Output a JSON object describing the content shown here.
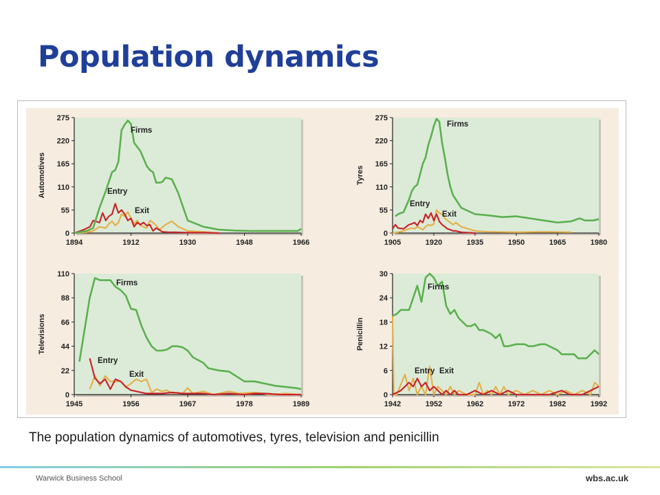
{
  "slide": {
    "title": "Population dynamics",
    "caption": "The population dynamics of automotives, tyres, television and penicillin",
    "footer_left": "Warwick Business School",
    "footer_right": "wbs.ac.uk"
  },
  "colors": {
    "title": "#1f3f99",
    "panel_background": "#f6ece0",
    "plot_background": "#dcebd8",
    "firms": "#5bb04e",
    "entry": "#c8252b",
    "exit": "#e5b04c"
  },
  "chart_data": [
    {
      "type": "line",
      "title": "",
      "ylabel": "Automotives",
      "xlabel": "",
      "xlim": [
        1894,
        1966
      ],
      "ylim": [
        0,
        275
      ],
      "xticks": [
        "1894",
        "1912",
        "1930",
        "1948",
        "1966"
      ],
      "yticks": [
        "0",
        "55",
        "110",
        "165",
        "220",
        "275"
      ],
      "grid": false,
      "series": [
        {
          "name": "Firms",
          "x": [
            1894,
            1898,
            1900,
            1902,
            1904,
            1906,
            1907,
            1908,
            1909,
            1910,
            1911,
            1912,
            1913,
            1915,
            1917,
            1918,
            1919,
            1920,
            1921,
            1922,
            1923,
            1925,
            1927,
            1930,
            1935,
            1940,
            1945,
            1950,
            1955,
            1960,
            1965,
            1966
          ],
          "y": [
            0,
            5,
            12,
            60,
            100,
            145,
            150,
            170,
            245,
            258,
            268,
            260,
            215,
            195,
            160,
            150,
            145,
            120,
            120,
            122,
            132,
            128,
            95,
            30,
            15,
            8,
            6,
            5,
            5,
            5,
            5,
            10
          ]
        },
        {
          "name": "Entry",
          "x": [
            1894,
            1897,
            1899,
            1900,
            1902,
            1903,
            1904,
            1905,
            1906,
            1907,
            1908,
            1909,
            1910,
            1911,
            1912,
            1913,
            1914,
            1915,
            1916,
            1917,
            1918,
            1919,
            1920,
            1922,
            1924,
            1926,
            1930,
            1935,
            1940
          ],
          "y": [
            0,
            8,
            15,
            30,
            25,
            48,
            30,
            40,
            45,
            70,
            48,
            55,
            45,
            30,
            35,
            15,
            25,
            20,
            25,
            18,
            20,
            5,
            12,
            3,
            2,
            2,
            1,
            1,
            0
          ]
        },
        {
          "name": "Exit",
          "x": [
            1894,
            1898,
            1900,
            1902,
            1904,
            1905,
            1906,
            1907,
            1908,
            1909,
            1910,
            1911,
            1912,
            1913,
            1914,
            1915,
            1917,
            1918,
            1919,
            1920,
            1921,
            1923,
            1925,
            1927,
            1930,
            1935,
            1940
          ],
          "y": [
            0,
            2,
            5,
            15,
            12,
            22,
            28,
            18,
            25,
            45,
            40,
            50,
            35,
            22,
            30,
            18,
            12,
            30,
            25,
            18,
            8,
            20,
            28,
            15,
            5,
            3,
            0
          ]
        }
      ],
      "annotations": [
        "Firms",
        "Entry",
        "Exit"
      ]
    },
    {
      "type": "line",
      "title": "",
      "ylabel": "Tyres",
      "xlabel": "",
      "xlim": [
        1905,
        1980
      ],
      "ylim": [
        0,
        275
      ],
      "xticks": [
        "1905",
        "1920",
        "1935",
        "1950",
        "1965",
        "1980"
      ],
      "yticks": [
        "0",
        "55",
        "110",
        "165",
        "220",
        "275"
      ],
      "grid": false,
      "series": [
        {
          "name": "Firms",
          "x": [
            1906,
            1907,
            1909,
            1910,
            1911,
            1912,
            1913,
            1914,
            1915,
            1916,
            1917,
            1918,
            1919,
            1920,
            1921,
            1922,
            1923,
            1924,
            1925,
            1926,
            1927,
            1928,
            1930,
            1935,
            1940,
            1945,
            1950,
            1955,
            1960,
            1965,
            1970,
            1973,
            1975,
            1978,
            1980
          ],
          "y": [
            40,
            45,
            50,
            65,
            80,
            100,
            110,
            115,
            140,
            165,
            180,
            210,
            230,
            255,
            272,
            265,
            215,
            180,
            140,
            110,
            90,
            80,
            60,
            45,
            42,
            38,
            40,
            35,
            30,
            25,
            28,
            35,
            30,
            30,
            33
          ]
        },
        {
          "name": "Entry",
          "x": [
            1905,
            1906,
            1907,
            1909,
            1910,
            1911,
            1912,
            1913,
            1914,
            1915,
            1916,
            1917,
            1918,
            1919,
            1920,
            1921,
            1922,
            1923,
            1924,
            1925,
            1926,
            1927,
            1928,
            1930,
            1935
          ],
          "y": [
            10,
            20,
            12,
            10,
            15,
            20,
            22,
            25,
            18,
            30,
            25,
            45,
            35,
            48,
            30,
            45,
            28,
            20,
            15,
            10,
            8,
            5,
            5,
            2,
            0
          ]
        },
        {
          "name": "Exit",
          "x": [
            1905,
            1907,
            1909,
            1910,
            1912,
            1913,
            1914,
            1915,
            1916,
            1917,
            1918,
            1919,
            1920,
            1921,
            1922,
            1923,
            1924,
            1925,
            1926,
            1927,
            1928,
            1930,
            1935,
            1940,
            1950,
            1960,
            1970
          ],
          "y": [
            0,
            2,
            5,
            8,
            12,
            10,
            15,
            12,
            8,
            15,
            20,
            18,
            22,
            55,
            48,
            45,
            35,
            30,
            25,
            20,
            25,
            15,
            5,
            3,
            2,
            3,
            2
          ]
        }
      ],
      "annotations": [
        "Firms",
        "Entry",
        "Exit"
      ]
    },
    {
      "type": "line",
      "title": "",
      "ylabel": "Televisions",
      "xlabel": "",
      "xlim": [
        1945,
        1989
      ],
      "ylim": [
        0,
        110
      ],
      "xticks": [
        "1945",
        "1956",
        "1967",
        "1978",
        "1989"
      ],
      "yticks": [
        "0",
        "22",
        "44",
        "66",
        "88",
        "110"
      ],
      "grid": false,
      "series": [
        {
          "name": "Firms",
          "x": [
            1946,
            1948,
            1949,
            1950,
            1952,
            1953,
            1954,
            1955,
            1956,
            1957,
            1958,
            1959,
            1960,
            1961,
            1962,
            1963,
            1964,
            1965,
            1966,
            1967,
            1968,
            1970,
            1971,
            1973,
            1975,
            1976,
            1978,
            1980,
            1982,
            1984,
            1986,
            1988,
            1989
          ],
          "y": [
            30,
            88,
            106,
            104,
            104,
            98,
            95,
            90,
            78,
            77,
            63,
            52,
            44,
            40,
            40,
            41,
            44,
            44,
            43,
            40,
            34,
            29,
            24,
            22,
            21,
            18,
            12,
            12,
            10,
            8,
            7,
            6,
            5
          ]
        },
        {
          "name": "Entry",
          "x": [
            1948,
            1949,
            1950,
            1951,
            1952,
            1953,
            1954,
            1955,
            1956,
            1957,
            1958,
            1959,
            1960,
            1962,
            1964,
            1966,
            1968,
            1970,
            1972,
            1975,
            1978,
            1980,
            1982,
            1985,
            1989
          ],
          "y": [
            33,
            15,
            10,
            14,
            5,
            14,
            12,
            7,
            4,
            3,
            2,
            1,
            1,
            1,
            2,
            1,
            1,
            1,
            0,
            1,
            0,
            1,
            1,
            0,
            0
          ]
        },
        {
          "name": "Exit",
          "x": [
            1948,
            1949,
            1950,
            1951,
            1952,
            1953,
            1954,
            1955,
            1956,
            1957,
            1958,
            1959,
            1960,
            1961,
            1962,
            1963,
            1964,
            1965,
            1966,
            1967,
            1968,
            1970,
            1972,
            1975,
            1977,
            1980,
            1983,
            1986,
            1989
          ],
          "y": [
            5,
            17,
            8,
            17,
            12,
            12,
            12,
            7,
            10,
            14,
            12,
            14,
            2,
            5,
            3,
            4,
            1,
            2,
            1,
            6,
            1,
            3,
            0,
            3,
            1,
            2,
            0,
            1,
            0
          ]
        }
      ],
      "annotations": [
        "Firms",
        "Entry",
        "Exit"
      ]
    },
    {
      "type": "line",
      "title": "",
      "ylabel": "Penicillin",
      "xlabel": "",
      "xlim": [
        1942,
        1992
      ],
      "ylim": [
        0,
        30
      ],
      "xticks": [
        "1942",
        "1952",
        "1962",
        "1972",
        "1982",
        "1992"
      ],
      "yticks": [
        "0",
        "6",
        "12",
        "18",
        "24",
        "30"
      ],
      "grid": false,
      "series": [
        {
          "name": "Firms",
          "x": [
            1942,
            1943,
            1944,
            1946,
            1947,
            1948,
            1949,
            1950,
            1951,
            1952,
            1953,
            1954,
            1955,
            1956,
            1957,
            1958,
            1960,
            1961,
            1962,
            1963,
            1964,
            1966,
            1967,
            1968,
            1969,
            1970,
            1972,
            1974,
            1975,
            1976,
            1978,
            1979,
            1980,
            1982,
            1983,
            1984,
            1986,
            1987,
            1988,
            1989,
            1990,
            1991,
            1992
          ],
          "y": [
            19.5,
            20,
            21,
            21,
            24,
            27,
            23,
            29,
            30,
            29,
            27,
            28,
            22,
            20,
            21,
            19,
            17,
            17,
            17.5,
            16,
            16,
            15,
            14,
            15,
            12,
            12,
            12.5,
            12.5,
            12,
            12,
            12.5,
            12.5,
            12,
            11,
            10,
            10,
            10,
            9,
            9,
            9,
            10,
            11,
            10
          ]
        },
        {
          "name": "Entry",
          "x": [
            1942,
            1944,
            1945,
            1946,
            1947,
            1948,
            1949,
            1950,
            1951,
            1952,
            1953,
            1954,
            1955,
            1956,
            1957,
            1958,
            1960,
            1962,
            1964,
            1966,
            1968,
            1970,
            1972,
            1975,
            1978,
            1980,
            1983,
            1985,
            1988,
            1990,
            1992
          ],
          "y": [
            0,
            1,
            2,
            3,
            2,
            4,
            2,
            3,
            1,
            2,
            1,
            0,
            1,
            0,
            1,
            0,
            0,
            1,
            0,
            1,
            0,
            1,
            0,
            0,
            0,
            0,
            1,
            0,
            0,
            1,
            2
          ]
        },
        {
          "name": "Exit",
          "x": [
            1942,
            1942.3,
            1943,
            1945,
            1946,
            1947,
            1948,
            1949,
            1950,
            1951,
            1952,
            1953,
            1954,
            1955,
            1956,
            1957,
            1958,
            1960,
            1962,
            1963,
            1964,
            1965,
            1966,
            1967,
            1968,
            1969,
            1970,
            1972,
            1974,
            1976,
            1978,
            1980,
            1982,
            1984,
            1986,
            1988,
            1990,
            1991,
            1992
          ],
          "y": [
            19.5,
            0,
            0,
            5,
            1,
            4,
            0,
            2,
            0,
            7,
            0,
            2,
            1,
            0,
            2,
            0,
            1,
            0,
            0,
            3,
            0,
            1,
            0,
            2,
            0,
            2,
            0,
            1,
            0,
            1,
            0,
            1,
            0,
            1,
            0,
            1,
            0,
            3,
            2
          ]
        }
      ],
      "annotations": [
        "Firms",
        "Entry",
        "Exit"
      ]
    }
  ]
}
